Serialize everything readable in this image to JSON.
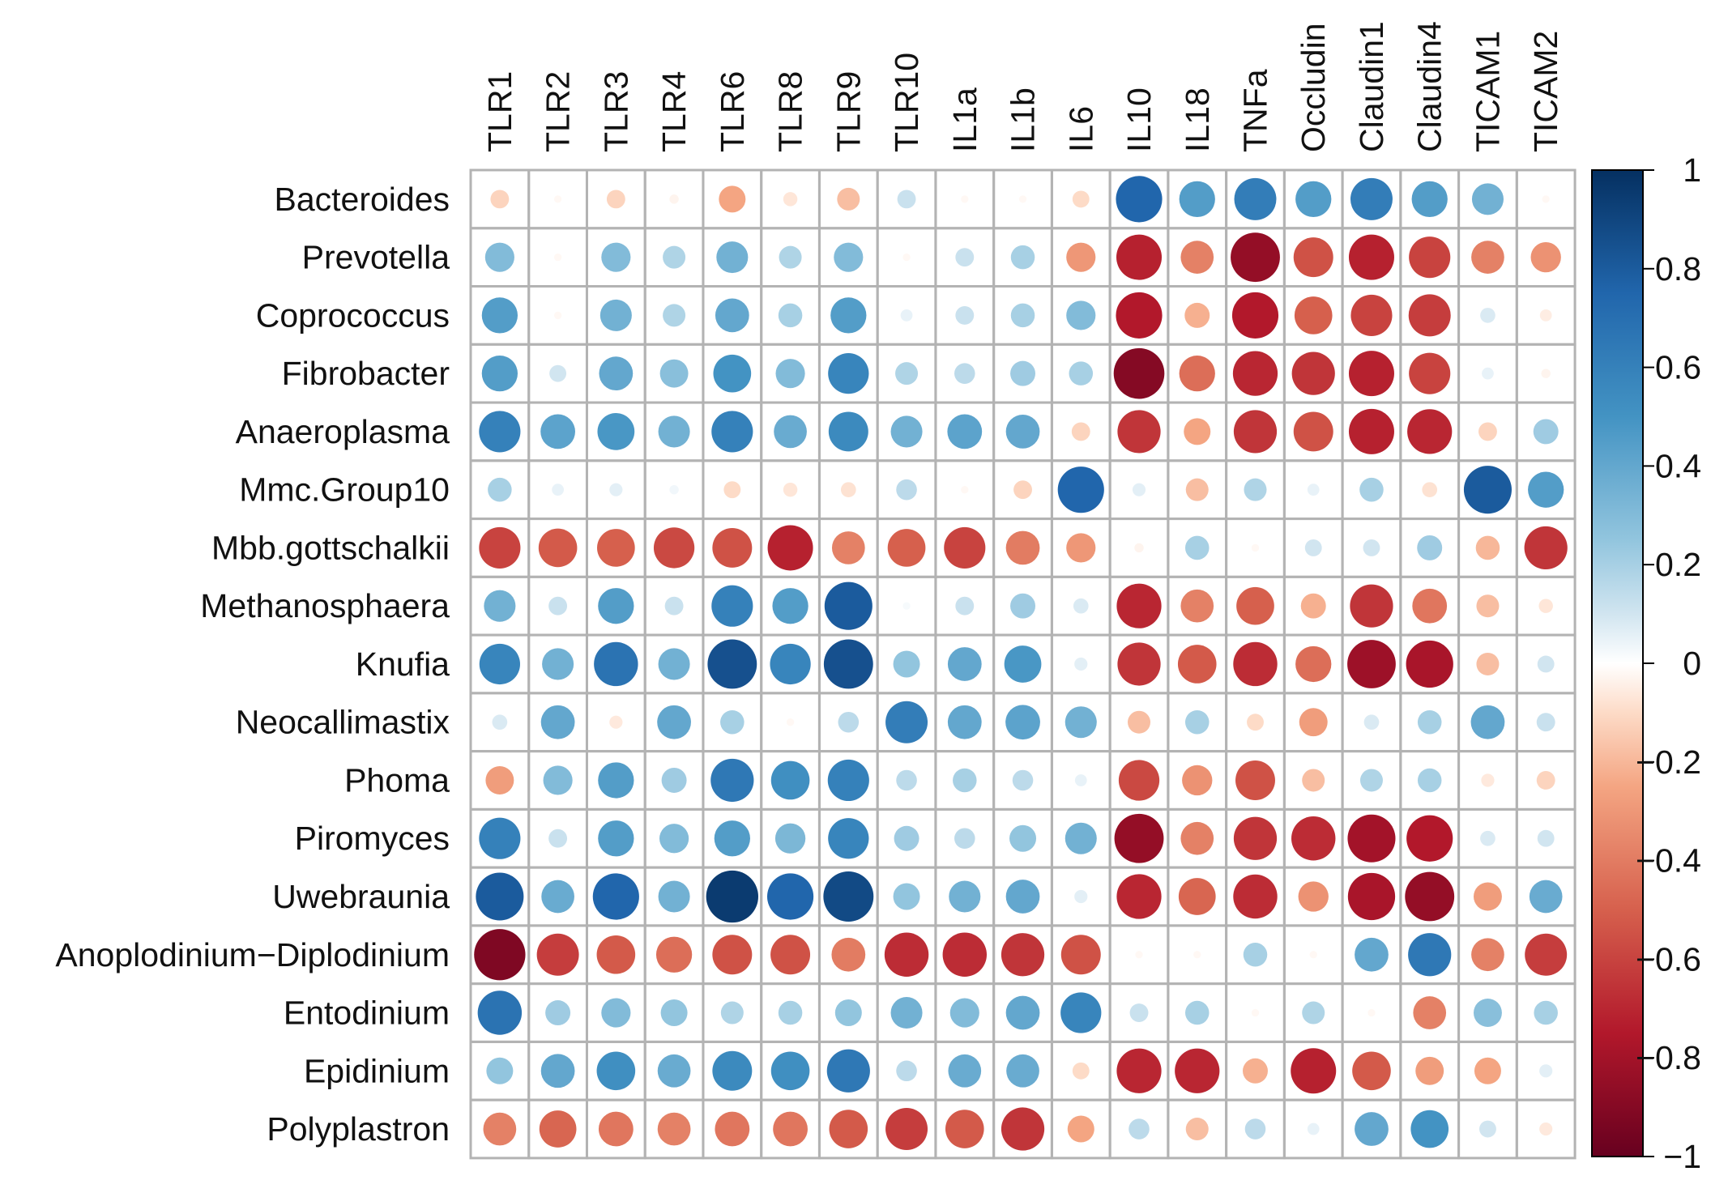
{
  "chart_data": {
    "type": "heatmap",
    "style": "correlation-circles",
    "columns": [
      "TLR1",
      "TLR2",
      "TLR3",
      "TLR4",
      "TLR6",
      "TLR8",
      "TLR9",
      "TLR10",
      "IL1a",
      "IL1b",
      "IL6",
      "IL10",
      "IL18",
      "TNFa",
      "Occludin",
      "Claudin1",
      "Claudin4",
      "TICAM1",
      "TICAM2"
    ],
    "rows": [
      "Bacteroides",
      "Prevotella",
      "Coprococcus",
      "Fibrobacter",
      "Anaeroplasma",
      "Mmc.Group10",
      "Mbb.gottschalkii",
      "Methanosphaera",
      "Knufia",
      "Neocallimastix",
      "Phoma",
      "Piromyces",
      "Uwebraunia",
      "Anoplodinium−Diplodinium",
      "Entodinium",
      "Epidinium",
      "Polyplastron"
    ],
    "values": [
      [
        -0.12,
        -0.02,
        -0.12,
        -0.03,
        -0.25,
        -0.07,
        -0.18,
        0.12,
        -0.02,
        -0.02,
        -0.1,
        0.75,
        0.45,
        0.62,
        0.45,
        0.62,
        0.45,
        0.35,
        -0.02
      ],
      [
        0.3,
        -0.02,
        0.3,
        0.18,
        0.35,
        0.18,
        0.3,
        -0.02,
        0.12,
        0.2,
        -0.3,
        -0.72,
        -0.38,
        -0.85,
        -0.55,
        -0.72,
        -0.6,
        -0.38,
        -0.32
      ],
      [
        0.45,
        -0.02,
        0.35,
        0.18,
        0.4,
        0.2,
        0.45,
        0.05,
        0.12,
        0.2,
        0.3,
        -0.75,
        -0.22,
        -0.75,
        -0.5,
        -0.6,
        -0.62,
        0.08,
        -0.05
      ],
      [
        0.45,
        0.1,
        0.4,
        0.28,
        0.5,
        0.3,
        0.58,
        0.18,
        0.15,
        0.22,
        0.2,
        -0.9,
        -0.45,
        -0.7,
        -0.65,
        -0.72,
        -0.6,
        0.05,
        -0.03
      ],
      [
        0.6,
        0.42,
        0.48,
        0.35,
        0.6,
        0.38,
        0.55,
        0.35,
        0.42,
        0.4,
        -0.12,
        -0.65,
        -0.25,
        -0.65,
        -0.55,
        -0.72,
        -0.7,
        -0.12,
        0.22
      ],
      [
        0.2,
        0.05,
        0.06,
        0.03,
        -0.1,
        -0.07,
        -0.08,
        0.15,
        -0.02,
        -0.12,
        0.75,
        0.06,
        -0.18,
        0.18,
        0.05,
        0.2,
        -0.08,
        0.8,
        0.45
      ],
      [
        -0.6,
        -0.52,
        -0.5,
        -0.58,
        -0.55,
        -0.72,
        -0.38,
        -0.5,
        -0.6,
        -0.4,
        -0.3,
        -0.03,
        0.2,
        -0.02,
        0.1,
        0.1,
        0.22,
        -0.2,
        -0.65
      ],
      [
        0.35,
        0.12,
        0.45,
        0.12,
        0.6,
        0.45,
        0.8,
        0.02,
        0.12,
        0.22,
        0.08,
        -0.7,
        -0.38,
        -0.5,
        -0.22,
        -0.65,
        -0.42,
        -0.18,
        -0.07
      ],
      [
        0.58,
        0.35,
        0.68,
        0.35,
        0.85,
        0.58,
        0.85,
        0.25,
        0.4,
        0.48,
        0.06,
        -0.65,
        -0.52,
        -0.68,
        -0.45,
        -0.82,
        -0.78,
        -0.18,
        0.1
      ],
      [
        0.08,
        0.4,
        -0.06,
        0.4,
        0.2,
        -0.02,
        0.15,
        0.62,
        0.4,
        0.42,
        0.35,
        -0.18,
        0.2,
        -0.1,
        -0.28,
        0.08,
        0.2,
        0.4,
        0.12
      ],
      [
        -0.28,
        0.3,
        0.45,
        0.22,
        0.65,
        0.52,
        0.6,
        0.15,
        0.2,
        0.15,
        0.05,
        -0.58,
        -0.32,
        -0.55,
        -0.18,
        0.18,
        0.2,
        -0.06,
        -0.12
      ],
      [
        0.6,
        0.12,
        0.45,
        0.3,
        0.45,
        0.32,
        0.58,
        0.22,
        0.15,
        0.25,
        0.35,
        -0.85,
        -0.38,
        -0.65,
        -0.68,
        -0.8,
        -0.75,
        0.08,
        0.1
      ],
      [
        0.8,
        0.38,
        0.75,
        0.35,
        0.95,
        0.75,
        0.88,
        0.25,
        0.35,
        0.4,
        0.06,
        -0.7,
        -0.48,
        -0.68,
        -0.32,
        -0.78,
        -0.85,
        -0.28,
        0.38
      ],
      [
        -0.92,
        -0.62,
        -0.52,
        -0.45,
        -0.55,
        -0.55,
        -0.4,
        -0.68,
        -0.68,
        -0.65,
        -0.55,
        -0.02,
        -0.02,
        0.2,
        -0.02,
        0.4,
        0.65,
        -0.38,
        -0.62
      ],
      [
        0.68,
        0.22,
        0.3,
        0.25,
        0.18,
        0.2,
        0.25,
        0.35,
        0.3,
        0.4,
        0.58,
        0.12,
        0.2,
        -0.02,
        0.18,
        -0.02,
        -0.38,
        0.28,
        0.2
      ],
      [
        0.25,
        0.4,
        0.52,
        0.38,
        0.55,
        0.52,
        0.65,
        0.15,
        0.38,
        0.38,
        -0.1,
        -0.7,
        -0.7,
        -0.22,
        -0.72,
        -0.52,
        -0.28,
        -0.25,
        0.06
      ],
      [
        -0.38,
        -0.48,
        -0.42,
        -0.38,
        -0.42,
        -0.42,
        -0.52,
        -0.62,
        -0.52,
        -0.65,
        -0.25,
        0.15,
        -0.18,
        0.15,
        0.05,
        0.4,
        0.5,
        0.1,
        -0.06
      ]
    ],
    "colorbar": {
      "range": [
        -1,
        1
      ],
      "ticks": [
        1,
        0.8,
        0.6,
        0.4,
        0.2,
        0,
        -0.2,
        -0.4,
        -0.6,
        -0.8,
        -1
      ],
      "tick_labels": [
        "1",
        "0.8",
        "0.6",
        "0.4",
        "0.2",
        "0",
        "−0.2",
        "−0.4",
        "−0.6",
        "−0.8",
        "−1"
      ],
      "color_stops": [
        {
          "v": -1.0,
          "c": "#67001f"
        },
        {
          "v": -0.75,
          "c": "#b2182b"
        },
        {
          "v": -0.5,
          "c": "#d6604d"
        },
        {
          "v": -0.25,
          "c": "#f4a582"
        },
        {
          "v": -0.1,
          "c": "#fddbc7"
        },
        {
          "v": 0.0,
          "c": "#ffffff"
        },
        {
          "v": 0.1,
          "c": "#d1e5f0"
        },
        {
          "v": 0.25,
          "c": "#92c5de"
        },
        {
          "v": 0.5,
          "c": "#4393c3"
        },
        {
          "v": 0.75,
          "c": "#2166ac"
        },
        {
          "v": 1.0,
          "c": "#053061"
        }
      ]
    },
    "title": "",
    "xlabel": "",
    "ylabel": ""
  }
}
